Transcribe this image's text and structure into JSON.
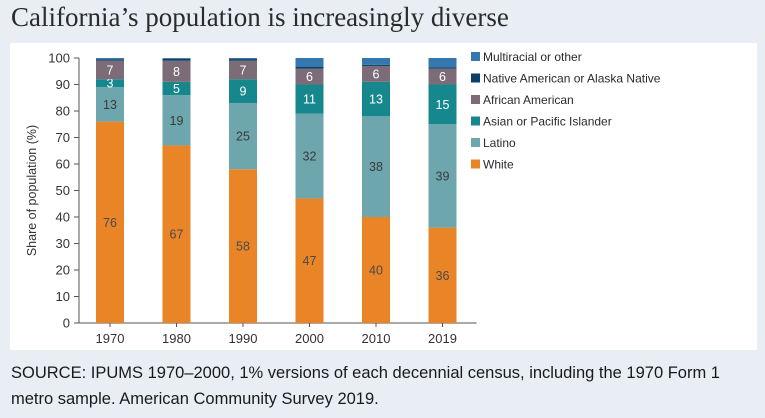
{
  "title": "California’s population is increasingly diverse",
  "source": "SOURCE: IPUMS 1970–2000, 1% versions of each decennial census, including the 1970 Form 1 metro sample. American Community Survey 2019.",
  "chart_data": {
    "type": "bar",
    "stacked": true,
    "categories": [
      "1970",
      "1980",
      "1990",
      "2000",
      "2010",
      "2019"
    ],
    "ylabel": "Share of population (%)",
    "xlabel": "",
    "ylim": [
      0,
      100
    ],
    "yticks": [
      0,
      10,
      20,
      30,
      40,
      50,
      60,
      70,
      80,
      90,
      100
    ],
    "grid": false,
    "legend_position": "right",
    "series": [
      {
        "name": "White",
        "color": "#ea8527",
        "label_color": "#4a4a4a",
        "values": [
          76,
          67,
          58,
          47,
          40,
          36
        ],
        "labels": [
          "76",
          "67",
          "58",
          "47",
          "40",
          "36"
        ]
      },
      {
        "name": "Latino",
        "color": "#6ea6ad",
        "label_color": "#3a3a3a",
        "values": [
          13,
          19,
          25,
          32,
          38,
          39
        ],
        "labels": [
          "13",
          "19",
          "25",
          "32",
          "38",
          "39"
        ]
      },
      {
        "name": "Asian or Pacific Islander",
        "color": "#17878e",
        "label_color": "#ffffff",
        "values": [
          3,
          5,
          9,
          11,
          13,
          15
        ],
        "labels": [
          "3",
          "5",
          "9",
          "11",
          "13",
          "15"
        ]
      },
      {
        "name": "African American",
        "color": "#7c6c77",
        "label_color": "#ffffff",
        "values": [
          7,
          8,
          7,
          6,
          6,
          6
        ],
        "labels": [
          "7",
          "8",
          "7",
          "6",
          "6",
          "6"
        ]
      },
      {
        "name": "Native American or Alaska Native",
        "color": "#0d3f66",
        "label_color": "#ffffff",
        "values": [
          0.5,
          0.7,
          0.6,
          0.6,
          0.4,
          0.4
        ],
        "labels": [
          "",
          "",
          "",
          "",
          "",
          ""
        ]
      },
      {
        "name": "Multiracial or other",
        "color": "#3577ae",
        "label_color": "#ffffff",
        "values": [
          0.5,
          0.3,
          0.4,
          3.4,
          2.6,
          3.6
        ],
        "labels": [
          "",
          "",
          "",
          "",
          "",
          ""
        ]
      }
    ],
    "legend_order": [
      "Multiracial or other",
      "Native American or Alaska Native",
      "African American",
      "Asian or Pacific Islander",
      "Latino",
      "White"
    ]
  }
}
